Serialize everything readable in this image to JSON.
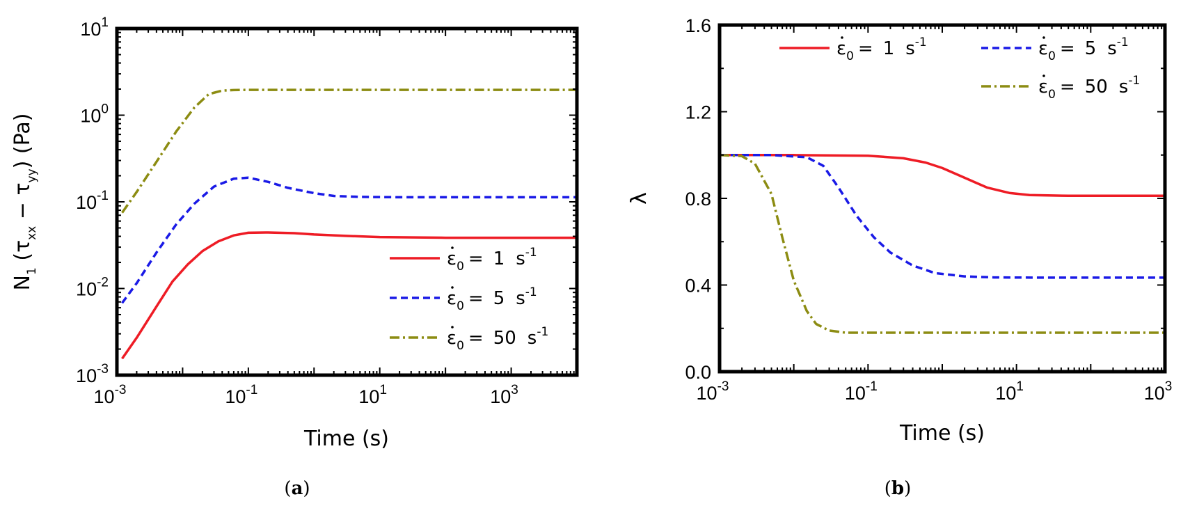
{
  "chart_data": [
    {
      "type": "line",
      "caption_letter": "a",
      "ylabel_parts": {
        "main": "N",
        "sub1": "1",
        "open": " (τ",
        "sub2": "xx",
        "minus": " − τ",
        "sub3": "yy",
        "close": ") (Pa)"
      },
      "xlabel": "Time (s)",
      "xscale": "log",
      "yscale": "log",
      "xlim": [
        0.001,
        10000
      ],
      "ylim": [
        0.001,
        10
      ],
      "xticks": [
        {
          "base": "10",
          "exp": "-3",
          "value": 0.001
        },
        {
          "base": "10",
          "exp": "-1",
          "value": 0.1
        },
        {
          "base": "10",
          "exp": "1",
          "value": 10
        },
        {
          "base": "10",
          "exp": "3",
          "value": 1000
        }
      ],
      "yticks": [
        {
          "base": "10",
          "exp": "-3",
          "value": 0.001
        },
        {
          "base": "10",
          "exp": "-2",
          "value": 0.01
        },
        {
          "base": "10",
          "exp": "-1",
          "value": 0.1
        },
        {
          "base": "10",
          "exp": "0",
          "value": 1
        },
        {
          "base": "10",
          "exp": "1",
          "value": 10
        }
      ],
      "legend_position": "bottom-right",
      "series": [
        {
          "name": "ε̇0 = 1 s-1",
          "label": {
            "sym": "ε",
            "sub": "0",
            "eq": "=",
            "val": "1",
            "unit": "s",
            "exp": "-1"
          },
          "color": "#ee1c25",
          "dash": "",
          "points": [
            [
              0.0012,
              0.00155
            ],
            [
              0.002,
              0.0027
            ],
            [
              0.004,
              0.0062
            ],
            [
              0.007,
              0.012
            ],
            [
              0.012,
              0.019
            ],
            [
              0.02,
              0.027
            ],
            [
              0.035,
              0.035
            ],
            [
              0.06,
              0.041
            ],
            [
              0.1,
              0.044
            ],
            [
              0.2,
              0.0443
            ],
            [
              0.5,
              0.0435
            ],
            [
              1,
              0.042
            ],
            [
              3,
              0.0405
            ],
            [
              10,
              0.0392
            ],
            [
              100,
              0.0385
            ],
            [
              1000,
              0.0385
            ],
            [
              10000,
              0.0385
            ]
          ]
        },
        {
          "name": "ε̇0 = 5 s-1",
          "label": {
            "sym": "ε",
            "sub": "0",
            "eq": "=",
            "val": "5",
            "unit": "s",
            "exp": "-1"
          },
          "color": "#1a1ae6",
          "dash": "10,6",
          "points": [
            [
              0.0012,
              0.0068
            ],
            [
              0.002,
              0.0115
            ],
            [
              0.004,
              0.026
            ],
            [
              0.008,
              0.055
            ],
            [
              0.015,
              0.095
            ],
            [
              0.03,
              0.15
            ],
            [
              0.06,
              0.185
            ],
            [
              0.1,
              0.19
            ],
            [
              0.2,
              0.17
            ],
            [
              0.4,
              0.145
            ],
            [
              1,
              0.126
            ],
            [
              2,
              0.117
            ],
            [
              5,
              0.114
            ],
            [
              20,
              0.113
            ],
            [
              100,
              0.113
            ],
            [
              1000,
              0.113
            ],
            [
              10000,
              0.113
            ]
          ]
        },
        {
          "name": "ε̇0 = 50 s-1",
          "label": {
            "sym": "ε",
            "sub": "0",
            "eq": "=",
            "val": "50",
            "unit": "s",
            "exp": "-1"
          },
          "color": "#8c8c12",
          "dash": "14,5,3,5",
          "points": [
            [
              0.0012,
              0.075
            ],
            [
              0.002,
              0.13
            ],
            [
              0.004,
              0.29
            ],
            [
              0.008,
              0.65
            ],
            [
              0.015,
              1.22
            ],
            [
              0.025,
              1.75
            ],
            [
              0.04,
              1.92
            ],
            [
              0.06,
              1.95
            ],
            [
              0.1,
              1.96
            ],
            [
              1,
              1.96
            ],
            [
              10,
              1.96
            ],
            [
              100,
              1.96
            ],
            [
              1000,
              1.96
            ],
            [
              10000,
              1.96
            ]
          ]
        }
      ]
    },
    {
      "type": "line",
      "caption_letter": "b",
      "ylabel": "λ",
      "xlabel": "Time (s)",
      "xscale": "log",
      "yscale": "linear",
      "xlim": [
        0.001,
        1000
      ],
      "ylim": [
        0.0,
        1.6
      ],
      "xticks": [
        {
          "base": "10",
          "exp": "-3",
          "value": 0.001
        },
        {
          "base": "10",
          "exp": "-1",
          "value": 0.1
        },
        {
          "base": "10",
          "exp": "1",
          "value": 10
        },
        {
          "base": "10",
          "exp": "3",
          "value": 1000
        }
      ],
      "yticks": [
        {
          "label": "0.0",
          "value": 0.0
        },
        {
          "label": "0.4",
          "value": 0.4
        },
        {
          "label": "0.8",
          "value": 0.8
        },
        {
          "label": "1.2",
          "value": 1.2
        },
        {
          "label": "1.6",
          "value": 1.6
        }
      ],
      "legend_position": "top-right",
      "series": [
        {
          "name": "ε̇0 = 1 s-1",
          "label": {
            "sym": "ε",
            "sub": "0",
            "eq": "=",
            "val": "1",
            "unit": "s",
            "exp": "-1"
          },
          "color": "#ee1c25",
          "dash": "",
          "points": [
            [
              0.001,
              1.0
            ],
            [
              0.01,
              1.0
            ],
            [
              0.1,
              0.997
            ],
            [
              0.3,
              0.985
            ],
            [
              0.6,
              0.965
            ],
            [
              1,
              0.94
            ],
            [
              2,
              0.895
            ],
            [
              4,
              0.85
            ],
            [
              8,
              0.825
            ],
            [
              15,
              0.815
            ],
            [
              50,
              0.812
            ],
            [
              1000,
              0.812
            ]
          ]
        },
        {
          "name": "ε̇0 = 5 s-1",
          "label": {
            "sym": "ε",
            "sub": "0",
            "eq": "=",
            "val": "5",
            "unit": "s",
            "exp": "-1"
          },
          "color": "#1a1ae6",
          "dash": "10,6",
          "points": [
            [
              0.001,
              1.0
            ],
            [
              0.005,
              1.0
            ],
            [
              0.015,
              0.99
            ],
            [
              0.025,
              0.95
            ],
            [
              0.04,
              0.85
            ],
            [
              0.07,
              0.72
            ],
            [
              0.12,
              0.62
            ],
            [
              0.2,
              0.55
            ],
            [
              0.4,
              0.49
            ],
            [
              0.8,
              0.455
            ],
            [
              2,
              0.44
            ],
            [
              5,
              0.435
            ],
            [
              20,
              0.434
            ],
            [
              1000,
              0.434
            ]
          ]
        },
        {
          "name": "ε̇0 = 50 s-1",
          "label": {
            "sym": "ε",
            "sub": "0",
            "eq": "=",
            "val": "50",
            "unit": "s",
            "exp": "-1"
          },
          "color": "#8c8c12",
          "dash": "14,5,3,5",
          "points": [
            [
              0.001,
              1.0
            ],
            [
              0.002,
              0.995
            ],
            [
              0.003,
              0.96
            ],
            [
              0.005,
              0.82
            ],
            [
              0.007,
              0.62
            ],
            [
              0.01,
              0.42
            ],
            [
              0.015,
              0.28
            ],
            [
              0.02,
              0.22
            ],
            [
              0.03,
              0.19
            ],
            [
              0.05,
              0.18
            ],
            [
              0.1,
              0.18
            ],
            [
              1000,
              0.18
            ]
          ]
        }
      ]
    }
  ],
  "captions": [
    {
      "open": "(",
      "letter": "a",
      "close": ")"
    },
    {
      "open": "(",
      "letter": "b",
      "close": ")"
    }
  ]
}
